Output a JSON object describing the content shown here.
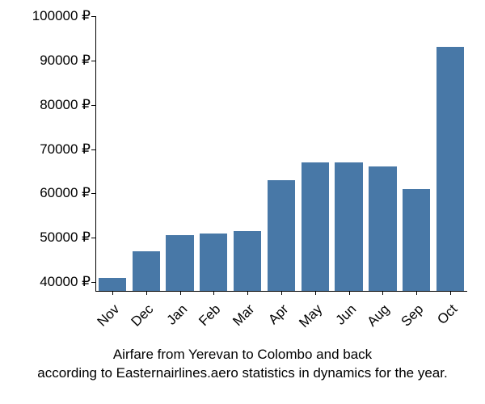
{
  "chart": {
    "type": "bar",
    "categories": [
      "Nov",
      "Dec",
      "Jan",
      "Feb",
      "Mar",
      "Apr",
      "May",
      "Jun",
      "Aug",
      "Sep",
      "Oct"
    ],
    "values": [
      41000,
      47000,
      50500,
      51000,
      51500,
      63000,
      67000,
      67000,
      66000,
      61000,
      93000
    ],
    "bar_color": "#4878a7",
    "background_color": "#ffffff",
    "y_ticks": [
      40000,
      50000,
      60000,
      70000,
      80000,
      90000,
      100000
    ],
    "y_tick_labels": [
      "40000 ₽",
      "50000 ₽",
      "60000 ₽",
      "70000 ₽",
      "80000 ₽",
      "90000 ₽",
      "100000 ₽"
    ],
    "ylim": [
      38000,
      100000
    ],
    "tick_fontsize": 17,
    "axis_color": "#000000",
    "bar_width_ratio": 0.82,
    "caption_line1": "Airfare from Yerevan to Colombo and back",
    "caption_line2": "according to Easternairlines.aero statistics in dynamics for the year.",
    "caption_fontsize": 17,
    "x_label_rotation": -45
  }
}
